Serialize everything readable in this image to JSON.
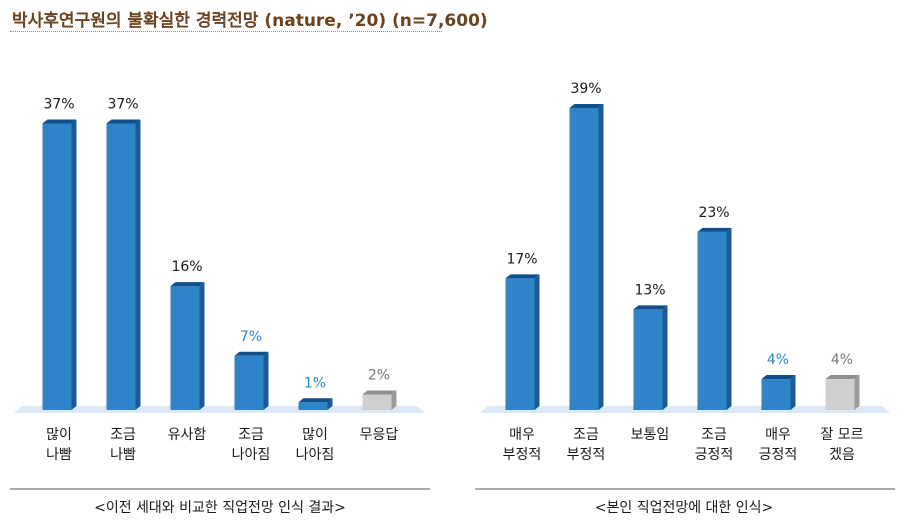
{
  "page_title": "박사후연구원의 불확실한 경력전망 (nature, ’20) (n=7,600)",
  "colors": {
    "bar_front": "#2f83c8",
    "bar_side": "#1a5a97",
    "bar_top": "#0f4f8c",
    "neutral_front": "#cfcfcf",
    "neutral_side": "#9b9b9b",
    "neutral_top": "#8f8f8f",
    "floor": "#dbe8f8",
    "label_default": "#1a1a1a",
    "label_blue": "#2e86c9",
    "label_gray": "#777777",
    "title": "#6b4320"
  },
  "chart_data": [
    {
      "type": "bar",
      "caption": "<이전 세대와 비교한 직업전망 인식 결과>",
      "ylim": [
        0,
        40
      ],
      "unit": "%",
      "categories": [
        [
          "많이",
          "나빰"
        ],
        [
          "조금",
          "나빰"
        ],
        [
          "유사함"
        ],
        [
          "조금",
          "나아짐"
        ],
        [
          "많이",
          "나아짐"
        ],
        [
          "무응답"
        ]
      ],
      "values": [
        37,
        37,
        16,
        7,
        1,
        2
      ],
      "labels": [
        "37%",
        "37%",
        "16%",
        "7%",
        "1%",
        "2%"
      ],
      "label_styles": [
        "default",
        "default",
        "default",
        "blue",
        "blue",
        "gray"
      ],
      "bar_styles": [
        "blue",
        "blue",
        "blue",
        "blue",
        "blue",
        "gray"
      ]
    },
    {
      "type": "bar",
      "caption": "<본인 직업전망에 대한 인식>",
      "ylim": [
        0,
        40
      ],
      "unit": "%",
      "categories": [
        [
          "매우",
          "부정적"
        ],
        [
          "조금",
          "부정적"
        ],
        [
          "보통임"
        ],
        [
          "조금",
          "긍정적"
        ],
        [
          "매우",
          "긍정적"
        ],
        [
          "잘 모르",
          "겠음"
        ]
      ],
      "values": [
        17,
        39,
        13,
        23,
        4,
        4
      ],
      "labels": [
        "17%",
        "39%",
        "13%",
        "23%",
        "4%",
        "4%"
      ],
      "label_styles": [
        "default",
        "default",
        "default",
        "default",
        "blue",
        "gray"
      ],
      "bar_styles": [
        "blue",
        "blue",
        "blue",
        "blue",
        "blue",
        "gray"
      ]
    }
  ]
}
